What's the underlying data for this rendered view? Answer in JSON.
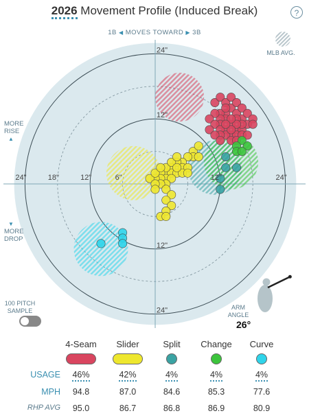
{
  "header": {
    "year": "2026",
    "title_rest": " Movement Profile (Induced Break)",
    "help": "?",
    "moves_left": "1B",
    "moves_text": "MOVES TOWARD",
    "moves_right": "3B",
    "mlb_avg_label": "MLB AVG."
  },
  "side_labels": {
    "rise": [
      "MORE",
      "RISE"
    ],
    "drop": [
      "MORE",
      "DROP"
    ],
    "sample": [
      "100 PITCH",
      "SAMPLE"
    ],
    "arm_angle": [
      "ARM",
      "ANGLE"
    ],
    "arm_angle_value": "26°"
  },
  "axis_labels": {
    "left_24": "24\"",
    "left_18": "18\"",
    "left_12": "12\"",
    "left_6": "6\"",
    "right_12": "12\"",
    "right_24": "24\"",
    "top_24": "24\"",
    "top_12": "12\"",
    "bottom_12": "12\"",
    "bottom_24": "24\""
  },
  "colors": {
    "4-Seam": "#d9455f",
    "Slider": "#eee72e",
    "Split": "#3aa3a3",
    "Change": "#3cc43c",
    "Curve": "#2fd4ea",
    "background_disc": "#dbe9ee",
    "axis": "#7fa7b6"
  },
  "chart_data": {
    "type": "scatter",
    "x_unit": "inches horizontal break (positive = toward 3B)",
    "y_unit": "inches induced vertical break",
    "xlim": [
      -26,
      26
    ],
    "ylim": [
      -26,
      26
    ],
    "rings": [
      6,
      12,
      18,
      24
    ],
    "mlb_avg": [
      {
        "pitch": "4-Seam",
        "x": 4.5,
        "y": 16,
        "r": 4.5
      },
      {
        "pitch": "Slider",
        "x": -4,
        "y": 2,
        "r": 5
      },
      {
        "pitch": "Split",
        "x": 11,
        "y": 3,
        "r": 5
      },
      {
        "pitch": "Change",
        "x": 14,
        "y": 4,
        "r": 5
      },
      {
        "pitch": "Curve",
        "x": -10,
        "y": -12,
        "r": 5
      }
    ],
    "series": [
      {
        "name": "4-Seam",
        "points": [
          [
            11,
            15
          ],
          [
            12,
            16
          ],
          [
            13,
            15
          ],
          [
            14,
            14
          ],
          [
            14,
            16
          ],
          [
            15,
            15
          ],
          [
            15,
            13
          ],
          [
            16,
            14
          ],
          [
            16,
            12
          ],
          [
            17,
            13
          ],
          [
            15,
            12
          ],
          [
            13,
            13
          ],
          [
            12,
            13
          ],
          [
            14,
            11
          ],
          [
            15,
            10
          ],
          [
            16,
            10
          ],
          [
            17,
            11
          ],
          [
            18,
            12
          ],
          [
            16,
            11
          ],
          [
            15,
            11
          ],
          [
            13,
            12
          ],
          [
            12,
            12
          ],
          [
            14,
            12
          ],
          [
            13,
            14
          ],
          [
            11,
            13
          ],
          [
            10,
            12
          ],
          [
            12,
            11
          ],
          [
            13,
            10
          ],
          [
            11,
            11
          ],
          [
            12,
            10
          ],
          [
            14,
            9
          ],
          [
            15,
            9
          ],
          [
            13,
            9
          ],
          [
            12,
            9
          ],
          [
            16,
            9
          ],
          [
            10,
            10
          ],
          [
            17,
            9
          ],
          [
            14,
            10
          ],
          [
            18,
            11
          ],
          [
            11,
            9
          ],
          [
            12,
            8
          ],
          [
            14,
            8
          ],
          [
            13,
            11
          ],
          [
            15,
            8
          ]
        ]
      },
      {
        "name": "Slider",
        "points": [
          [
            7,
            6
          ],
          [
            8,
            7
          ],
          [
            7,
            5
          ],
          [
            6,
            5
          ],
          [
            5,
            4
          ],
          [
            4,
            4
          ],
          [
            3,
            3
          ],
          [
            2,
            2
          ],
          [
            3,
            2
          ],
          [
            4,
            2
          ],
          [
            5,
            3
          ],
          [
            6,
            3
          ],
          [
            2,
            3
          ],
          [
            1,
            2
          ],
          [
            2,
            1
          ],
          [
            1,
            1
          ],
          [
            0,
            1
          ],
          [
            -1,
            1
          ],
          [
            0,
            2
          ],
          [
            1,
            3
          ],
          [
            3,
            4
          ],
          [
            4,
            5
          ],
          [
            5,
            2
          ],
          [
            6,
            2
          ],
          [
            3,
            1
          ],
          [
            2,
            0
          ],
          [
            1,
            0
          ],
          [
            0,
            0
          ],
          [
            2,
            -1
          ],
          [
            3,
            -2
          ],
          [
            2,
            -3
          ],
          [
            3,
            -4
          ],
          [
            2,
            -5
          ],
          [
            1,
            -6
          ],
          [
            2,
            -6
          ],
          [
            8,
            5
          ],
          [
            0,
            -1
          ],
          [
            4,
            3
          ]
        ]
      },
      {
        "name": "Split",
        "points": [
          [
            13,
            5
          ],
          [
            13,
            3
          ],
          [
            12,
            1
          ],
          [
            12,
            -1
          ],
          [
            15,
            3
          ]
        ]
      },
      {
        "name": "Change",
        "points": [
          [
            16,
            8
          ],
          [
            15,
            7
          ],
          [
            17,
            7
          ],
          [
            15,
            6
          ],
          [
            16,
            6
          ]
        ]
      },
      {
        "name": "Curve",
        "points": [
          [
            -6,
            -9
          ],
          [
            -6,
            -10
          ],
          [
            -6,
            -11
          ],
          [
            -10,
            -11
          ]
        ]
      }
    ],
    "arm_angle_deg": 26
  },
  "stats": {
    "pitches": [
      "4-Seam",
      "Slider",
      "Split",
      "Change",
      "Curve"
    ],
    "rows": [
      {
        "label": "USAGE",
        "values": [
          "46%",
          "42%",
          "4%",
          "4%",
          "4%"
        ]
      },
      {
        "label": "MPH",
        "values": [
          "94.8",
          "87.0",
          "84.6",
          "85.3",
          "77.6"
        ]
      },
      {
        "label": "RHP AVG",
        "values": [
          "95.0",
          "86.7",
          "86.8",
          "86.9",
          "80.9"
        ]
      }
    ]
  }
}
